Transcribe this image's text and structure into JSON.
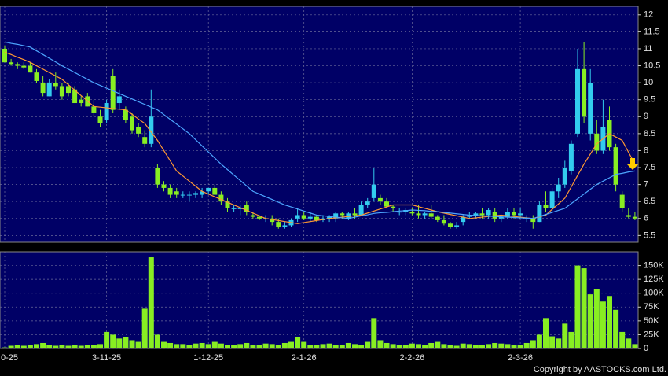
{
  "chart_data": [
    {
      "type": "candlestick",
      "categories": [
        "0-25",
        null,
        null,
        null,
        null,
        null,
        null,
        null,
        null,
        null,
        null,
        null,
        null,
        null,
        null,
        null,
        "3-11-25",
        null,
        null,
        null,
        null,
        null,
        null,
        null,
        null,
        null,
        null,
        null,
        null,
        null,
        null,
        null,
        "1-12-25",
        null,
        null,
        null,
        null,
        null,
        null,
        null,
        null,
        null,
        null,
        null,
        null,
        null,
        null,
        "2-1-26",
        null,
        null,
        null,
        null,
        null,
        null,
        null,
        null,
        null,
        null,
        null,
        null,
        null,
        null,
        null,
        null,
        "2-2-26",
        null,
        null,
        null,
        null,
        null,
        null,
        null,
        null,
        null,
        null,
        null,
        null,
        null,
        null,
        null,
        null,
        "2-3-26",
        null,
        null,
        null,
        null,
        null,
        null,
        null,
        null,
        null,
        null,
        null,
        null,
        null,
        null,
        null,
        null,
        null,
        null
      ],
      "open": [
        11.0,
        10.6,
        10.55,
        10.5,
        10.5,
        10.3,
        10.0,
        9.6,
        10.0,
        9.9,
        9.9,
        9.8,
        9.5,
        9.6,
        9.3,
        9.0,
        8.9,
        10.2,
        9.4,
        9.2,
        9.0,
        8.7,
        8.4,
        8.2,
        7.5,
        7.0,
        6.9,
        6.8,
        6.7,
        6.7,
        6.7,
        6.7,
        6.8,
        6.9,
        6.7,
        6.5,
        6.3,
        6.3,
        6.4,
        6.1,
        6.05,
        6.0,
        6.0,
        5.9,
        5.75,
        5.8,
        6.0,
        6.1,
        6.0,
        6.05,
        5.95,
        6.0,
        6.0,
        6.15,
        6.0,
        6.15,
        6.1,
        6.4,
        6.6,
        6.6,
        6.5,
        6.35,
        6.2,
        6.2,
        6.2,
        6.15,
        6.1,
        6.15,
        6.05,
        5.95,
        5.85,
        5.75,
        5.9,
        6.05,
        6.1,
        6.15,
        6.1,
        6.2,
        6.0,
        6.05,
        6.2,
        6.1,
        6.0,
        6.0,
        5.9,
        6.4,
        6.3,
        6.8,
        7.0,
        7.4,
        8.5,
        10.4,
        8.5,
        8.5,
        8.0,
        8.9,
        8.1,
        6.7,
        6.1,
        6.05
      ],
      "high": [
        11.1,
        10.7,
        10.6,
        10.6,
        10.6,
        10.4,
        10.2,
        10.1,
        10.3,
        10.0,
        10.0,
        9.9,
        9.6,
        9.7,
        9.5,
        9.2,
        9.5,
        10.4,
        9.8,
        9.3,
        9.1,
        8.8,
        8.6,
        9.8,
        7.6,
        7.1,
        7.0,
        6.9,
        6.8,
        6.8,
        6.8,
        6.9,
        6.9,
        7.0,
        6.8,
        6.6,
        6.4,
        6.4,
        6.5,
        6.2,
        6.1,
        6.1,
        6.1,
        6.0,
        5.9,
        6.0,
        6.3,
        6.2,
        6.2,
        6.1,
        6.1,
        6.1,
        6.2,
        6.2,
        6.2,
        6.3,
        6.5,
        6.6,
        7.5,
        6.7,
        6.6,
        6.4,
        6.3,
        6.3,
        6.3,
        6.4,
        6.2,
        6.4,
        6.1,
        6.1,
        5.9,
        5.9,
        6.1,
        6.2,
        6.2,
        6.3,
        6.3,
        6.3,
        6.1,
        6.3,
        6.3,
        6.3,
        6.1,
        6.1,
        6.5,
        6.8,
        6.9,
        7.2,
        7.7,
        8.3,
        11.0,
        11.2,
        10.4,
        8.9,
        9.5,
        9.3,
        8.2,
        6.8,
        6.3,
        6.2
      ],
      "low": [
        10.6,
        10.5,
        10.4,
        10.4,
        10.3,
        10.0,
        9.6,
        9.6,
        9.8,
        9.5,
        9.6,
        9.4,
        9.3,
        9.3,
        9.0,
        8.7,
        8.8,
        9.1,
        9.2,
        8.8,
        8.5,
        8.4,
        8.1,
        8.1,
        6.9,
        6.8,
        6.6,
        6.6,
        6.6,
        6.5,
        6.6,
        6.6,
        6.7,
        6.7,
        6.4,
        6.2,
        6.2,
        6.1,
        6.1,
        6.0,
        5.95,
        5.9,
        5.8,
        5.7,
        5.7,
        5.75,
        5.9,
        5.95,
        5.9,
        5.9,
        5.9,
        5.9,
        5.9,
        6.0,
        5.95,
        6.0,
        6.1,
        6.3,
        6.5,
        6.4,
        6.3,
        6.2,
        6.1,
        6.1,
        6.1,
        6.0,
        6.0,
        6.0,
        5.9,
        5.8,
        5.7,
        5.7,
        5.8,
        6.0,
        6.0,
        6.0,
        6.0,
        5.9,
        5.9,
        6.0,
        6.0,
        6.0,
        5.9,
        5.7,
        5.9,
        6.2,
        6.2,
        6.6,
        6.9,
        7.3,
        8.4,
        8.8,
        8.3,
        7.9,
        7.9,
        8.0,
        6.8,
        6.2,
        6.0,
        5.95
      ],
      "close": [
        10.6,
        10.55,
        10.5,
        10.45,
        10.3,
        10.05,
        9.7,
        10.0,
        9.9,
        9.6,
        9.7,
        9.4,
        9.4,
        9.3,
        9.1,
        8.8,
        9.4,
        9.2,
        9.6,
        8.9,
        8.6,
        8.5,
        8.2,
        9.0,
        7.0,
        6.9,
        6.7,
        6.7,
        6.7,
        6.7,
        6.75,
        6.8,
        6.9,
        6.7,
        6.5,
        6.3,
        6.3,
        6.3,
        6.2,
        6.05,
        6.0,
        6.0,
        5.9,
        5.75,
        5.8,
        5.95,
        6.1,
        6.0,
        6.05,
        5.95,
        6.0,
        6.05,
        6.15,
        6.1,
        6.15,
        6.1,
        6.4,
        6.5,
        7.0,
        6.5,
        6.35,
        6.3,
        6.2,
        6.25,
        6.15,
        6.1,
        6.15,
        6.05,
        5.95,
        5.85,
        5.75,
        5.8,
        6.05,
        6.1,
        6.15,
        6.1,
        6.25,
        6.0,
        6.05,
        6.2,
        6.1,
        6.15,
        6.0,
        5.9,
        6.4,
        6.3,
        6.8,
        7.0,
        7.5,
        8.2,
        10.4,
        9.0,
        10.0,
        8.0,
        8.7,
        8.1,
        7.0,
        6.3,
        6.05,
        6.0
      ],
      "series": [
        {
          "color": "#ff9933",
          "values": [
            10.9,
            10.83,
            10.75,
            10.68,
            10.6,
            10.5,
            10.4,
            10.3,
            10.2,
            10.1,
            9.94,
            9.78,
            9.62,
            9.46,
            9.3,
            9.28,
            9.26,
            9.24,
            9.22,
            9.2,
            9.07,
            8.93,
            8.8,
            8.55,
            8.3,
            8.0,
            7.7,
            7.4,
            7.25,
            7.1,
            6.95,
            6.8,
            6.72,
            6.64,
            6.56,
            6.48,
            6.4,
            6.32,
            6.24,
            6.16,
            6.08,
            6.0,
            5.97,
            5.94,
            5.91,
            5.88,
            5.85,
            5.88,
            5.91,
            5.94,
            5.97,
            6.0,
            6.02,
            6.04,
            6.06,
            6.08,
            6.1,
            6.16,
            6.22,
            6.28,
            6.34,
            6.4,
            6.4,
            6.4,
            6.4,
            6.35,
            6.3,
            6.25,
            6.2,
            6.16,
            6.12,
            6.08,
            6.04,
            6.0,
            6.02,
            6.04,
            6.06,
            6.08,
            6.1,
            6.08,
            6.06,
            6.04,
            6.02,
            6.0,
            6.05,
            6.1,
            6.27,
            6.43,
            6.6,
            6.93,
            7.27,
            7.6,
            7.9,
            8.2,
            8.35,
            8.5,
            8.4,
            8.3,
            7.95,
            7.6
          ]
        },
        {
          "color": "#4da6ff",
          "values": [
            11.2,
            11.16,
            11.13,
            11.09,
            11.05,
            10.94,
            10.83,
            10.72,
            10.61,
            10.5,
            10.4,
            10.3,
            10.2,
            10.1,
            10.0,
            9.92,
            9.84,
            9.76,
            9.68,
            9.6,
            9.52,
            9.44,
            9.36,
            9.28,
            9.2,
            9.06,
            8.92,
            8.78,
            8.64,
            8.5,
            8.32,
            8.14,
            7.96,
            7.78,
            7.6,
            7.44,
            7.28,
            7.12,
            6.96,
            6.8,
            6.72,
            6.64,
            6.56,
            6.48,
            6.4,
            6.34,
            6.28,
            6.22,
            6.16,
            6.1,
            6.08,
            6.06,
            6.04,
            6.02,
            6.0,
            6.04,
            6.08,
            6.11,
            6.15,
            6.17,
            6.18,
            6.2,
            6.22,
            6.23,
            6.25,
            6.24,
            6.23,
            6.21,
            6.2,
            6.18,
            6.16,
            6.14,
            6.12,
            6.1,
            6.09,
            6.08,
            6.07,
            6.06,
            6.05,
            6.04,
            6.03,
            6.02,
            6.01,
            6.0,
            6.06,
            6.12,
            6.18,
            6.24,
            6.3,
            6.44,
            6.58,
            6.72,
            6.86,
            7.0,
            7.1,
            7.2,
            7.3,
            7.33,
            7.37,
            7.4
          ]
        }
      ],
      "up_color": "#33ccee",
      "down_color": "#88ee22",
      "ylim": [
        5.3,
        12.25
      ],
      "yticks": [
        5.5,
        6,
        6.5,
        7,
        7.5,
        8,
        8.5,
        9,
        9.5,
        10,
        10.5,
        11,
        11.5,
        12
      ],
      "grid": true
    },
    {
      "type": "bar",
      "values": [
        2000,
        5000,
        6000,
        5000,
        7000,
        8000,
        10000,
        6000,
        5000,
        6000,
        5000,
        6000,
        5000,
        6000,
        7000,
        8000,
        30000,
        25000,
        18000,
        20000,
        15000,
        12000,
        72000,
        165000,
        25000,
        12000,
        10000,
        8000,
        8000,
        7000,
        9000,
        10000,
        8000,
        12000,
        9000,
        7000,
        6000,
        8000,
        10000,
        7000,
        6000,
        9000,
        8000,
        7000,
        10000,
        12000,
        20000,
        12000,
        7000,
        6000,
        8000,
        9000,
        7000,
        6000,
        10000,
        8000,
        7000,
        12000,
        55000,
        15000,
        10000,
        8000,
        7000,
        6000,
        9000,
        8000,
        7000,
        10000,
        12000,
        8000,
        6000,
        5000,
        9000,
        8000,
        7000,
        6000,
        8000,
        10000,
        9000,
        8000,
        7000,
        6000,
        10000,
        15000,
        25000,
        55000,
        22000,
        18000,
        45000,
        30000,
        150000,
        145000,
        98000,
        108000,
        85000,
        95000,
        70000,
        30000,
        18000,
        8000
      ],
      "color": "#88ee22",
      "ylim": [
        0,
        175000
      ],
      "yticks": [
        0,
        {
          "value": 25000,
          "label": "25K"
        },
        {
          "value": 50000,
          "label": "50K"
        },
        {
          "value": 75000,
          "label": "75K"
        },
        {
          "value": 100000,
          "label": "100K"
        },
        {
          "value": 125000,
          "label": "125K"
        },
        {
          "value": 150000,
          "label": "150K"
        }
      ],
      "grid": true
    }
  ],
  "copyright": "Copyright by AASTOCKS.com Ltd."
}
